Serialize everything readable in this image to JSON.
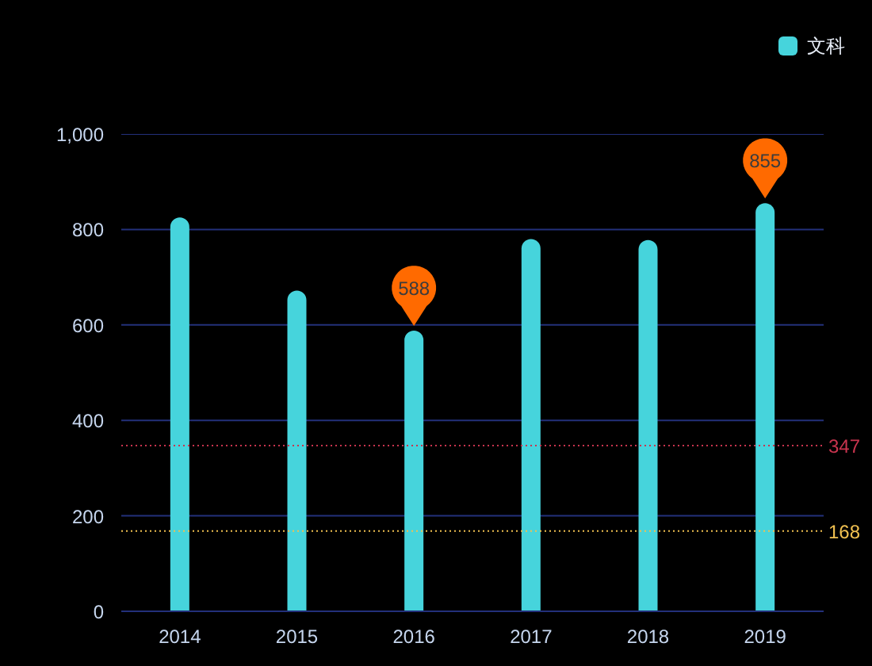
{
  "chart_data": {
    "type": "bar",
    "categories": [
      "2014",
      "2015",
      "2016",
      "2017",
      "2018",
      "2019"
    ],
    "series": [
      {
        "name": "文科",
        "color": "#46d4dc",
        "values": [
          825,
          672,
          588,
          780,
          778,
          855
        ]
      }
    ],
    "ylim": [
      0,
      1000
    ],
    "yticks": [
      0,
      200,
      400,
      600,
      800,
      {
        "value": 1000,
        "label": "1,000"
      }
    ],
    "grid": "y",
    "legend": "top right",
    "ref_lines": [
      {
        "axis": "y",
        "value": 347,
        "label": "347",
        "color": "#c8344e",
        "line_style": "dotted"
      },
      {
        "axis": "y",
        "value": 168,
        "label": "168",
        "color": "#f0c050",
        "line_style": "dotted"
      }
    ],
    "annotations": [
      {
        "text": "588",
        "x": "2016",
        "y": 588
      },
      {
        "text": "855",
        "x": "2019",
        "y": 855
      }
    ]
  }
}
